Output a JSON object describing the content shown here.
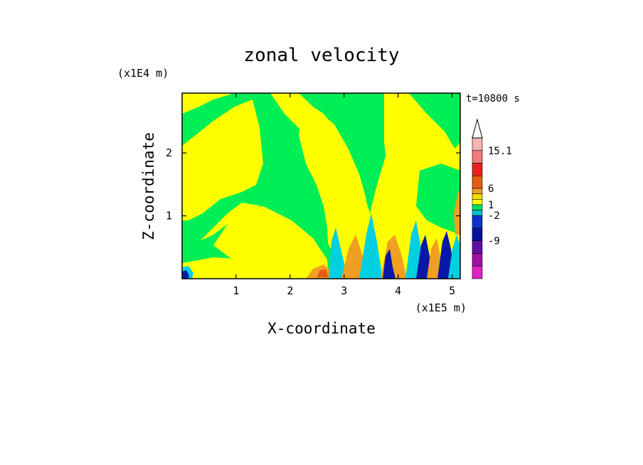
{
  "chart_data": {
    "type": "heatmap",
    "title": "zonal velocity",
    "time_label": "t=10800 s",
    "xlabel": "X-coordinate",
    "ylabel": "Z-coordinate",
    "x_unit": "(x1E5 m)",
    "y_unit": "(x1E4 m)",
    "xlim": [
      0,
      5.15
    ],
    "ylim": [
      0,
      2.95
    ],
    "xticks": [
      1,
      2,
      3,
      4,
      5
    ],
    "yticks": [
      1,
      2
    ],
    "colorbar": {
      "levels_labeled": [
        "15.1",
        "6",
        "1",
        "-2",
        "-9"
      ],
      "colors_top_to_bottom": [
        "#f5b5b5",
        "#f07a7a",
        "#e82020",
        "#e85a10",
        "#f0a020",
        "#f0e000",
        "#ffff00",
        "#00e060",
        "#00c0d0",
        "#1030d0",
        "#0a10a0",
        "#6010a0",
        "#a010a0",
        "#e020c0"
      ]
    },
    "field_colors": {
      "low_positive": "#ffff00",
      "near_zero": "#00ee55",
      "negative_small": "#00d0e0",
      "negative_large": "#0818a8",
      "positive_large": "#e85a10",
      "positive_mid": "#f0a020"
    }
  }
}
